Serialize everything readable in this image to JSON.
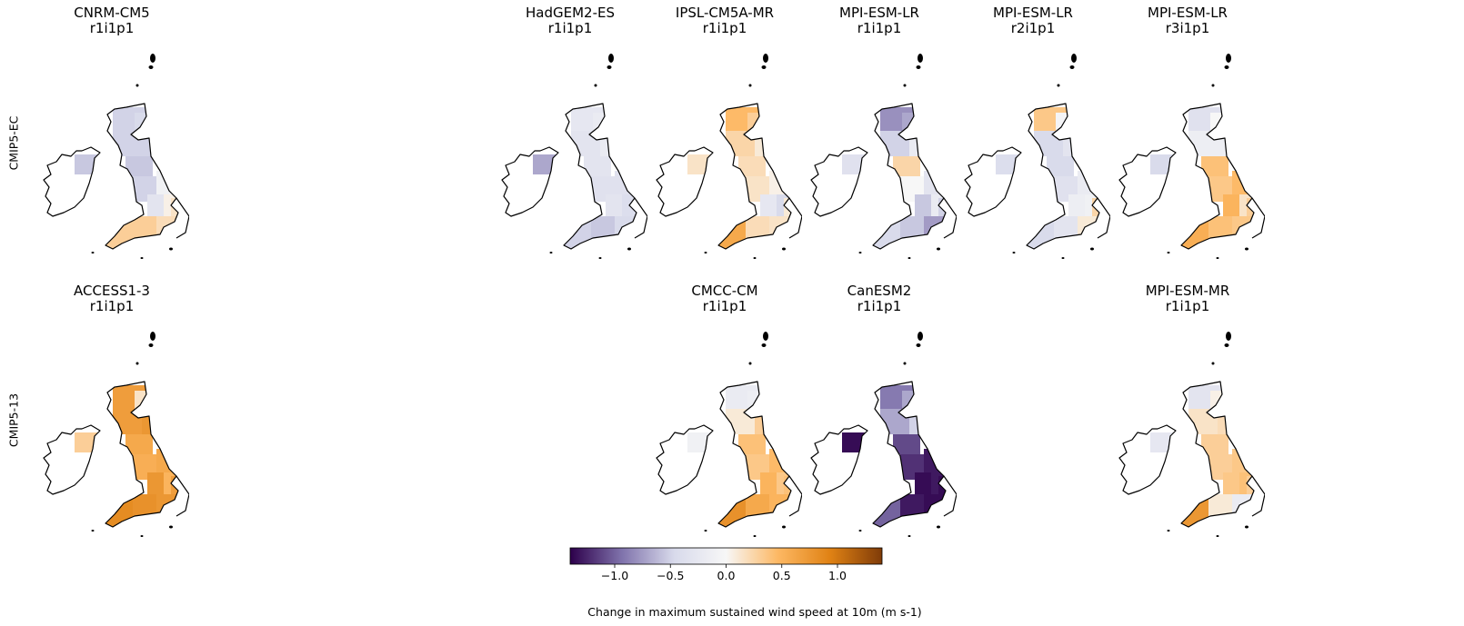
{
  "row_labels": [
    "CMIP5-EC",
    "CMIP5-13"
  ],
  "panels": [
    {
      "model": "CNRM-CM5",
      "run": "r1i1p1",
      "row": 0,
      "col": 0
    },
    {
      "model": "HadGEM2-ES",
      "run": "r1i1p1",
      "row": 0,
      "col": 3
    },
    {
      "model": "IPSL-CM5A-MR",
      "run": "r1i1p1",
      "row": 0,
      "col": 4
    },
    {
      "model": "MPI-ESM-LR",
      "run": "r1i1p1",
      "row": 0,
      "col": 5
    },
    {
      "model": "MPI-ESM-LR",
      "run": "r2i1p1",
      "row": 0,
      "col": 6
    },
    {
      "model": "MPI-ESM-LR",
      "run": "r3i1p1",
      "row": 0,
      "col": 7
    },
    {
      "model": "ACCESS1-3",
      "run": "r1i1p1",
      "row": 1,
      "col": 0
    },
    {
      "model": "CMCC-CM",
      "run": "r1i1p1",
      "row": 1,
      "col": 4
    },
    {
      "model": "CanESM2",
      "run": "r1i1p1",
      "row": 1,
      "col": 5
    },
    {
      "model": "MPI-ESM-MR",
      "run": "r1i1p1",
      "row": 1,
      "col": 7
    }
  ],
  "chart_data": {
    "type": "heatmap",
    "colormap": "PuOr_r",
    "vmin": -1.4,
    "vmax": 1.4,
    "colors": [
      "#2d004b",
      "#8073ac",
      "#d8daeb",
      "#f7f7f7",
      "#fdb863",
      "#e08214",
      "#7f3b08"
    ],
    "colorbar": {
      "ticks": [
        -1.0,
        -0.5,
        0.0,
        0.5,
        1.0
      ],
      "tick_labels": [
        "−1.0",
        "−0.5",
        "0.0",
        "0.5",
        "1.0"
      ],
      "label": "Change in maximum sustained wind speed at 10m (m s-1)"
    },
    "grid_values": {
      "CNRM-CM5 r1i1p1": [
        -0.5,
        -0.45,
        -0.4,
        -0.55,
        -0.5,
        -0.5,
        -0.45,
        -0.55,
        -0.5,
        -0.1,
        -0.3,
        0.05,
        0.3,
        0.3,
        0.2,
        0.15
      ],
      "HadGEM2-ES r1i1p1": [
        -0.25,
        -0.2,
        -0.15,
        -0.7,
        -0.3,
        -0.2,
        -0.2,
        -0.3,
        -0.35,
        -0.35,
        -0.3,
        -0.4,
        -0.5,
        -0.55,
        -0.45,
        -0.4
      ],
      "IPSL-CM5A-MR r1i1p1": [
        0.45,
        0.3,
        0.2,
        0.15,
        0.25,
        0.1,
        -0.1,
        0.2,
        0.15,
        0.05,
        -0.25,
        -0.45,
        0.6,
        0.2,
        0.15,
        0.1
      ],
      "MPI-ESM-LR r1i1p1": [
        -0.8,
        -0.7,
        -0.15,
        -0.35,
        -0.5,
        -0.2,
        -0.3,
        0.25,
        0.0,
        -0.3,
        -0.55,
        -0.2,
        -0.45,
        -0.55,
        -0.75,
        -0.5
      ],
      "MPI-ESM-LR r2i1p1": [
        0.35,
        -0.05,
        -0.1,
        -0.4,
        -0.45,
        -0.3,
        -0.2,
        -0.45,
        -0.35,
        -0.2,
        -0.15,
        -0.1,
        -0.45,
        -0.3,
        0.1,
        0.25
      ],
      "MPI-ESM-LR r3i1p1": [
        -0.35,
        0.0,
        -0.1,
        -0.45,
        -0.15,
        -0.15,
        0.3,
        0.4,
        0.35,
        0.45,
        0.5,
        0.15,
        0.55,
        0.4,
        0.35,
        0.3
      ],
      "ACCESS1-3 r1i1p1": [
        0.7,
        0.15,
        0.35,
        0.3,
        0.7,
        0.75,
        0.8,
        0.6,
        0.55,
        0.6,
        0.75,
        0.5,
        0.85,
        0.8,
        0.75,
        0.7
      ],
      "CMCC-CM r1i1p1": [
        -0.2,
        -0.15,
        -0.1,
        -0.1,
        0.1,
        0.3,
        0.15,
        0.4,
        0.35,
        0.45,
        0.5,
        0.35,
        0.8,
        0.6,
        0.5,
        0.4
      ],
      "CanESM2 r1i1p1": [
        -0.9,
        -0.7,
        -0.5,
        -1.35,
        -0.7,
        -0.5,
        -0.6,
        -1.1,
        -1.2,
        -1.3,
        -1.35,
        -1.3,
        -1.0,
        -1.3,
        -1.35,
        -1.35
      ],
      "MPI-ESM-MR r1i1p1": [
        -0.3,
        0.05,
        0.1,
        -0.25,
        0.15,
        0.2,
        0.25,
        0.3,
        0.3,
        0.35,
        0.35,
        0.4,
        0.75,
        0.1,
        -0.2,
        0.3
      ]
    }
  }
}
